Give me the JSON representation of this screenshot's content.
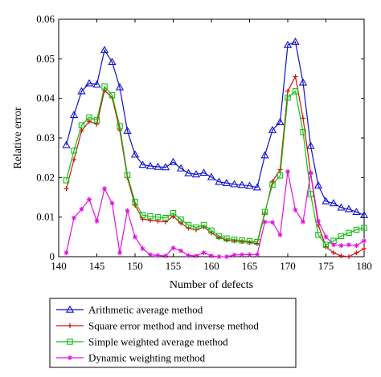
{
  "chart_data": {
    "type": "line",
    "xlabel": "Number of defects",
    "ylabel": "Relative error",
    "xlim": [
      140,
      180
    ],
    "ylim": [
      0,
      0.06
    ],
    "xticks": [
      "140",
      "145",
      "150",
      "155",
      "160",
      "165",
      "170",
      "175",
      "180"
    ],
    "yticks": [
      "0",
      "0.01",
      "0.02",
      "0.03",
      "0.04",
      "0.05",
      "0.06"
    ],
    "grid": false,
    "legend_position": "bottom",
    "x": [
      141,
      142,
      143,
      144,
      145,
      146,
      147,
      148,
      149,
      150,
      151,
      152,
      153,
      154,
      155,
      156,
      157,
      158,
      159,
      160,
      161,
      162,
      163,
      164,
      165,
      166,
      167,
      168,
      169,
      170,
      171,
      172,
      173,
      174,
      175,
      176,
      177,
      178,
      179,
      180
    ],
    "series": [
      {
        "name": "Arithmetic average method",
        "color": "#1010d0",
        "marker": "triangle",
        "values": [
          0.0282,
          0.0358,
          0.0418,
          0.0438,
          0.0435,
          0.0522,
          0.0492,
          0.0428,
          0.0318,
          0.0258,
          0.0232,
          0.0229,
          0.0227,
          0.0226,
          0.0239,
          0.0223,
          0.0211,
          0.0208,
          0.0212,
          0.0201,
          0.0189,
          0.0186,
          0.0183,
          0.0181,
          0.0179,
          0.0175,
          0.0256,
          0.032,
          0.034,
          0.0535,
          0.0543,
          0.044,
          0.028,
          0.018,
          0.014,
          0.0135,
          0.0124,
          0.012,
          0.0113,
          0.0105
        ]
      },
      {
        "name": "Square error method and inverse method",
        "color": "#d01010",
        "marker": "plus",
        "values": [
          0.0172,
          0.0245,
          0.0318,
          0.0342,
          0.0335,
          0.042,
          0.0402,
          0.032,
          0.02,
          0.013,
          0.0095,
          0.0092,
          0.009,
          0.0088,
          0.0102,
          0.0085,
          0.0072,
          0.0068,
          0.0075,
          0.006,
          0.0048,
          0.0042,
          0.004,
          0.0038,
          0.0036,
          0.0033,
          0.011,
          0.019,
          0.022,
          0.0418,
          0.0455,
          0.035,
          0.021,
          0.008,
          0.0025,
          0.001,
          0.0002,
          0.0,
          0.001,
          0.002
        ]
      },
      {
        "name": "Simple weighted average method",
        "color": "#10c010",
        "marker": "square",
        "values": [
          0.0193,
          0.0268,
          0.0332,
          0.0352,
          0.0345,
          0.043,
          0.0408,
          0.033,
          0.0206,
          0.0138,
          0.0105,
          0.0102,
          0.01,
          0.0098,
          0.011,
          0.0094,
          0.008,
          0.0074,
          0.008,
          0.0066,
          0.0052,
          0.0046,
          0.0043,
          0.0041,
          0.0039,
          0.0037,
          0.0113,
          0.0182,
          0.0205,
          0.0402,
          0.0418,
          0.0315,
          0.0158,
          0.0055,
          0.003,
          0.004,
          0.0052,
          0.006,
          0.0068,
          0.0073
        ]
      },
      {
        "name": "Dynamic weighting method",
        "color": "#e010e0",
        "marker": "star",
        "values": [
          0.001,
          0.0098,
          0.012,
          0.0145,
          0.009,
          0.0172,
          0.0135,
          0.001,
          0.0116,
          0.005,
          0.002,
          0.0005,
          0.0003,
          0.0002,
          0.0022,
          0.0015,
          0.0003,
          0.0002,
          0.001,
          0.0002,
          0.0,
          0.0,
          0.0004,
          0.0005,
          0.0005,
          0.0005,
          0.0088,
          0.0087,
          0.0055,
          0.0215,
          0.0118,
          0.0088,
          0.0212,
          0.009,
          0.005,
          0.003,
          0.0028,
          0.003,
          0.0028,
          0.004
        ]
      }
    ]
  }
}
